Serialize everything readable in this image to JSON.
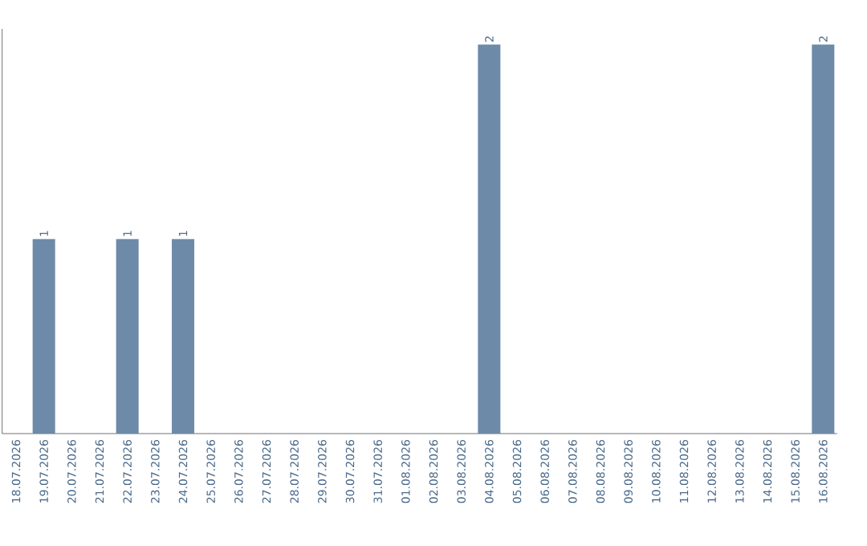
{
  "chart_data": {
    "type": "bar",
    "categories": [
      "18.07.2026",
      "19.07.2026",
      "20.07.2026",
      "21.07.2026",
      "22.07.2026",
      "23.07.2026",
      "24.07.2026",
      "25.07.2026",
      "26.07.2026",
      "27.07.2026",
      "28.07.2026",
      "29.07.2026",
      "30.07.2026",
      "31.07.2026",
      "01.08.2026",
      "02.08.2026",
      "03.08.2026",
      "04.08.2026",
      "05.08.2026",
      "06.08.2026",
      "07.08.2026",
      "08.08.2026",
      "09.08.2026",
      "10.08.2026",
      "11.08.2026",
      "12.08.2026",
      "13.08.2026",
      "14.08.2026",
      "15.08.2026",
      "16.08.2026"
    ],
    "values": [
      0,
      1,
      0,
      0,
      1,
      0,
      1,
      0,
      0,
      0,
      0,
      0,
      0,
      0,
      0,
      0,
      0,
      2,
      0,
      0,
      0,
      0,
      0,
      0,
      0,
      0,
      0,
      0,
      0,
      2
    ],
    "value_labels": [
      null,
      "1",
      null,
      null,
      "1",
      null,
      "1",
      null,
      null,
      null,
      null,
      null,
      null,
      null,
      null,
      null,
      null,
      "2",
      null,
      null,
      null,
      null,
      null,
      null,
      null,
      null,
      null,
      null,
      null,
      "2"
    ],
    "color": "#6d8aa8"
  }
}
